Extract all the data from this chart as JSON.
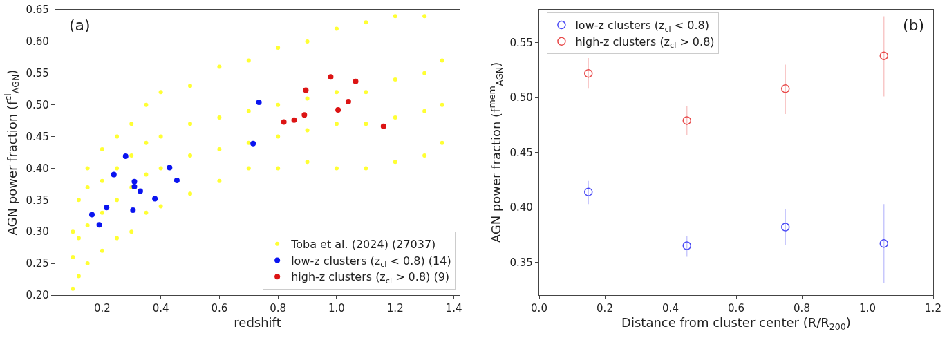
{
  "chart_data": [
    {
      "type": "scatter",
      "xlabel": "redshift",
      "ylabel": "AGN power fraction (f$^{cl}$$_{AGN}$)",
      "annotations": [
        "(a)"
      ],
      "xlim": [
        0.04,
        1.42
      ],
      "xticks": [
        {
          "value": 0.2,
          "label": "0.2"
        },
        {
          "value": 0.4,
          "label": "0.4"
        },
        {
          "value": 0.6,
          "label": "0.6"
        },
        {
          "value": 0.8,
          "label": "0.8"
        },
        {
          "value": 1.0,
          "label": "1.0"
        },
        {
          "value": 1.2,
          "label": "1.2"
        },
        {
          "value": 1.4,
          "label": "1.4"
        }
      ],
      "ylim": [
        0.2,
        0.65
      ],
      "yticks": [
        {
          "value": 0.2,
          "label": "0.20"
        },
        {
          "value": 0.25,
          "label": "0.25"
        },
        {
          "value": 0.3,
          "label": "0.30"
        },
        {
          "value": 0.35,
          "label": "0.35"
        },
        {
          "value": 0.4,
          "label": "0.40"
        },
        {
          "value": 0.45,
          "label": "0.45"
        },
        {
          "value": 0.5,
          "label": "0.50"
        },
        {
          "value": 0.55,
          "label": "0.55"
        },
        {
          "value": 0.6,
          "label": "0.60"
        },
        {
          "value": 0.65,
          "label": "0.65"
        }
      ],
      "grid": false,
      "legend": "bottom right",
      "marker": "circle",
      "series": [
        {
          "name": "Toba et al. (2024) (27037)",
          "color": "#ffff33",
          "x": [
            0.1,
            0.1,
            0.1,
            0.12,
            0.12,
            0.12,
            0.15,
            0.15,
            0.15,
            0.15,
            0.2,
            0.2,
            0.2,
            0.2,
            0.25,
            0.25,
            0.25,
            0.25,
            0.3,
            0.3,
            0.3,
            0.3,
            0.35,
            0.35,
            0.35,
            0.35,
            0.4,
            0.4,
            0.4,
            0.4,
            0.5,
            0.5,
            0.5,
            0.5,
            0.6,
            0.6,
            0.6,
            0.6,
            0.7,
            0.7,
            0.7,
            0.7,
            0.8,
            0.8,
            0.8,
            0.8,
            0.9,
            0.9,
            0.9,
            0.9,
            1.0,
            1.0,
            1.0,
            1.0,
            1.1,
            1.1,
            1.1,
            1.1,
            1.2,
            1.2,
            1.2,
            1.2,
            1.3,
            1.3,
            1.3,
            1.3,
            1.36,
            1.36,
            1.36
          ],
          "values": [
            0.21,
            0.26,
            0.3,
            0.23,
            0.29,
            0.35,
            0.25,
            0.31,
            0.37,
            0.4,
            0.27,
            0.33,
            0.38,
            0.43,
            0.29,
            0.35,
            0.4,
            0.45,
            0.3,
            0.37,
            0.42,
            0.47,
            0.33,
            0.39,
            0.44,
            0.5,
            0.34,
            0.4,
            0.45,
            0.52,
            0.36,
            0.42,
            0.47,
            0.53,
            0.38,
            0.43,
            0.48,
            0.56,
            0.4,
            0.44,
            0.49,
            0.57,
            0.4,
            0.45,
            0.5,
            0.59,
            0.41,
            0.46,
            0.51,
            0.6,
            0.4,
            0.47,
            0.52,
            0.62,
            0.4,
            0.47,
            0.52,
            0.63,
            0.41,
            0.48,
            0.54,
            0.64,
            0.42,
            0.49,
            0.55,
            0.64,
            0.44,
            0.5,
            0.57
          ]
        },
        {
          "name": "low-z clusters (z$_{cl}$ < 0.8) (14)",
          "color": "#0a14f0",
          "x": [
            0.165,
            0.19,
            0.215,
            0.24,
            0.28,
            0.305,
            0.31,
            0.31,
            0.33,
            0.38,
            0.43,
            0.455,
            0.715,
            0.735
          ],
          "values": [
            0.327,
            0.311,
            0.338,
            0.39,
            0.419,
            0.334,
            0.371,
            0.379,
            0.364,
            0.352,
            0.401,
            0.381,
            0.439,
            0.504
          ]
        },
        {
          "name": "high-z clusters (z$_{cl}$ > 0.8) (9)",
          "color": "#dc1414",
          "x": [
            0.82,
            0.855,
            0.89,
            0.895,
            0.98,
            1.005,
            1.04,
            1.065,
            1.16
          ],
          "values": [
            0.473,
            0.476,
            0.484,
            0.523,
            0.544,
            0.492,
            0.505,
            0.537,
            0.466
          ]
        }
      ]
    },
    {
      "type": "scatter",
      "xlabel": "Distance from cluster center (R/R$_{200}$)",
      "ylabel": "AGN power fraction (f$^{mem}$$_{AGN}$)",
      "annotations": [
        "(b)"
      ],
      "xlim": [
        0,
        1.2
      ],
      "xticks": [
        {
          "value": 0,
          "label": "0.0"
        },
        {
          "value": 0.2,
          "label": "0.2"
        },
        {
          "value": 0.4,
          "label": "0.4"
        },
        {
          "value": 0.6,
          "label": "0.6"
        },
        {
          "value": 0.8,
          "label": "0.8"
        },
        {
          "value": 1.0,
          "label": "1.0"
        },
        {
          "value": 1.2,
          "label": "1.2"
        }
      ],
      "ylim": [
        0.32,
        0.58
      ],
      "yticks": [
        {
          "value": 0.35,
          "label": "0.35"
        },
        {
          "value": 0.4,
          "label": "0.40"
        },
        {
          "value": 0.45,
          "label": "0.45"
        },
        {
          "value": 0.5,
          "label": "0.50"
        },
        {
          "value": 0.55,
          "label": "0.55"
        }
      ],
      "grid": false,
      "legend": "top left",
      "marker": "circle",
      "series": [
        {
          "name": "low-z clusters (z$_{cl}$ < 0.8)",
          "color": "#4a4af5",
          "x": [
            0.15,
            0.45,
            0.75,
            1.05
          ],
          "values": [
            0.414,
            0.365,
            0.382,
            0.367
          ],
          "errors": [
            [
              0.403,
              0.424
            ],
            [
              0.355,
              0.374
            ],
            [
              0.366,
              0.398
            ],
            [
              0.331,
              0.403
            ]
          ]
        },
        {
          "name": "high-z clusters (z$_{cl}$ > 0.8)",
          "color": "#e84a4a",
          "x": [
            0.15,
            0.45,
            0.75,
            1.05
          ],
          "values": [
            0.522,
            0.479,
            0.508,
            0.538
          ],
          "errors": [
            [
              0.508,
              0.536
            ],
            [
              0.466,
              0.492
            ],
            [
              0.485,
              0.53
            ],
            [
              0.501,
              0.574
            ]
          ]
        }
      ]
    }
  ]
}
